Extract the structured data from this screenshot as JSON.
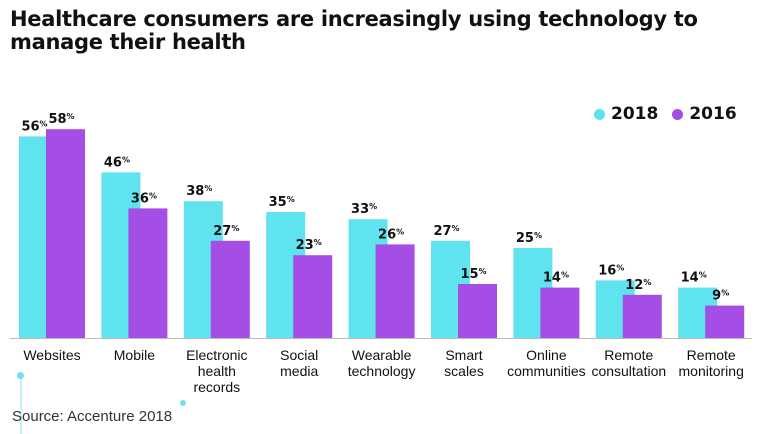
{
  "title": "Healthcare consumers are increasingly using technology to manage their health",
  "source": "Source: Accenture 2018",
  "colors": {
    "series_2018": "#5fe3ee",
    "series_2016": "#a44ee6",
    "axis": "#bdbdbd"
  },
  "chart_data": {
    "type": "bar",
    "title": "Healthcare consumers are increasingly using technology to manage their health",
    "xlabel": "",
    "ylabel": "",
    "ylim": [
      0,
      60
    ],
    "grid": false,
    "legend_position": "top-right",
    "categories": [
      [
        "Websites"
      ],
      [
        "Mobile"
      ],
      [
        "Electronic",
        "health",
        "records"
      ],
      [
        "Social",
        "media"
      ],
      [
        "Wearable",
        "technology"
      ],
      [
        "Smart",
        "scales"
      ],
      [
        "Online",
        "communities"
      ],
      [
        "Remote",
        "consultation"
      ],
      [
        "Remote",
        "monitoring"
      ]
    ],
    "series": [
      {
        "name": "2018",
        "values": [
          56,
          46,
          38,
          35,
          33,
          27,
          25,
          16,
          14
        ]
      },
      {
        "name": "2016",
        "values": [
          58,
          36,
          27,
          23,
          26,
          15,
          14,
          12,
          9
        ]
      }
    ],
    "value_suffix": "%"
  }
}
